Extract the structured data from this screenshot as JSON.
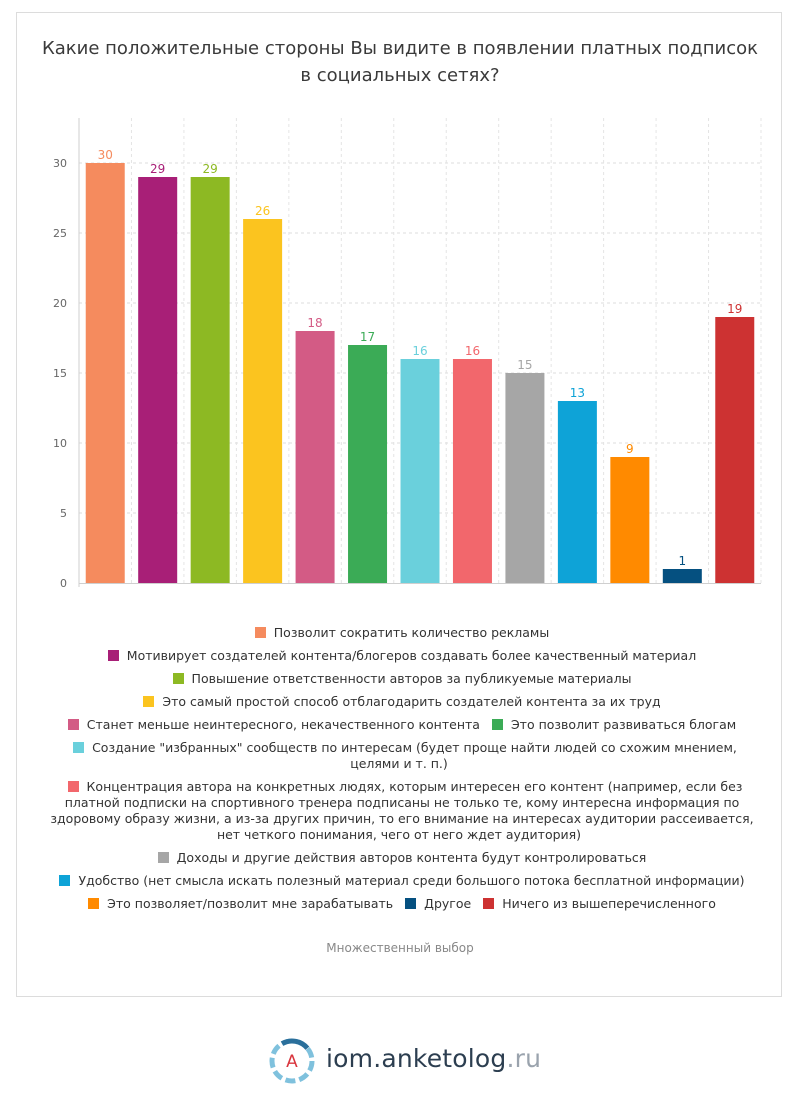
{
  "title_lines": [
    "Какие положительные стороны Вы видите в появлении платных подписок",
    "в социальных сетях?"
  ],
  "note": "Множественный выбор",
  "brand": {
    "name": "iom.anketolog",
    "tld": ".ru",
    "logo_letter": "A"
  },
  "legend_rows": [
    [
      0
    ],
    [
      1
    ],
    [
      2
    ],
    [
      3
    ],
    [
      4,
      5
    ],
    [
      6
    ],
    [
      7
    ],
    [
      8
    ],
    [
      9
    ],
    [
      10,
      11,
      12
    ]
  ],
  "chart_data": {
    "type": "bar",
    "title": "Какие положительные стороны Вы видите в появлении платных подписок в социальных сетях?",
    "ylim": [
      0,
      33
    ],
    "yticks": [
      0,
      5,
      10,
      15,
      20,
      25,
      30
    ],
    "grid": true,
    "legend_position": "bottom",
    "series": [
      {
        "name": "Позволит сократить количество рекламы",
        "value": 30,
        "color": "#f58b5e"
      },
      {
        "name": "Мотивирует создателей контента/блогеров создавать более качественный материал",
        "value": 29,
        "color": "#a81f77"
      },
      {
        "name": "Повышение ответственности авторов за публикуемые материалы",
        "value": 29,
        "color": "#8db923"
      },
      {
        "name": "Это самый простой способ отблагодарить создателей контента за их труд",
        "value": 26,
        "color": "#fbc41f"
      },
      {
        "name": "Станет меньше неинтересного, некачественного контента",
        "value": 18,
        "color": "#d35b85"
      },
      {
        "name": "Это позволит развиваться блогам",
        "value": 17,
        "color": "#3bab56"
      },
      {
        "name": "Создание \"избранных\" сообществ по интересам (будет проще найти людей со схожим мнением, целями и т. п.)",
        "value": 16,
        "color": "#6ad0dc"
      },
      {
        "name": "Концентрация автора на конкретных людях, которым интересен его контент (например, если без платной подписки на спортивного тренера подписаны не только те, кому интересна информация по здоровому образу жизни, а из-за других причин, то его внимание на интересах аудитории рассеивается, нет четкого понимания, чего от него ждет аудитория)",
        "value": 16,
        "color": "#f2676c"
      },
      {
        "name": "Доходы и другие действия авторов контента будут контролироваться",
        "value": 15,
        "color": "#a6a6a6"
      },
      {
        "name": "Удобство (нет смысла искать полезный материал среди большого потока бесплатной информации)",
        "value": 13,
        "color": "#0ea3d7"
      },
      {
        "name": "Это позволяет/позволит мне зарабатывать",
        "value": 9,
        "color": "#ff8a00"
      },
      {
        "name": "Другое",
        "value": 1,
        "color": "#055080"
      },
      {
        "name": "Ничего из вышеперечисленного",
        "value": 19,
        "color": "#cd3232"
      }
    ]
  }
}
